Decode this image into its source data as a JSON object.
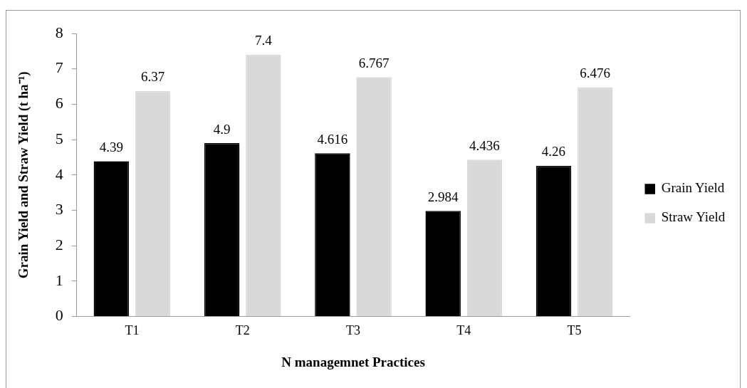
{
  "chart_data": {
    "type": "bar",
    "xlabel": "N managemnet Practices",
    "ylabel": "Grain Yield and Straw Yield (t ha⁻¹)",
    "categories": [
      "T1",
      "T2",
      "T3",
      "T4",
      "T5"
    ],
    "series": [
      {
        "name": "Grain Yield",
        "color": "#000000",
        "values": [
          4.39,
          4.9,
          4.616,
          2.984,
          4.26
        ]
      },
      {
        "name": "Straw Yield",
        "color": "#d9d9d9",
        "values": [
          6.37,
          7.4,
          6.767,
          4.436,
          6.476
        ]
      }
    ],
    "ylim": [
      0,
      8
    ],
    "yticks": [
      0,
      1,
      2,
      3,
      4,
      5,
      6,
      7,
      8
    ],
    "grid": false,
    "legend": "right",
    "data_labels": true
  }
}
